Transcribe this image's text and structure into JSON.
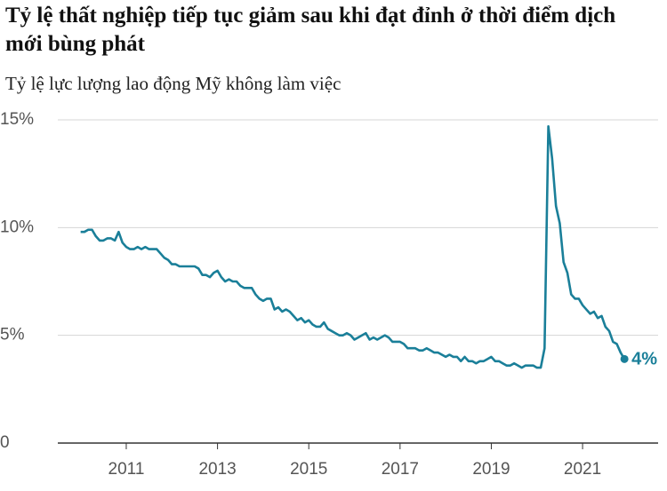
{
  "chart_data": {
    "type": "line",
    "title": "Tỷ lệ thất nghiệp tiếp tục giảm sau khi đạt đỉnh ở thời điểm dịch mới bùng phát",
    "subtitle": "Tỷ lệ lực lượng lao động Mỹ không làm việc",
    "x": [
      2010,
      2010.083,
      2010.167,
      2010.25,
      2010.333,
      2010.417,
      2010.5,
      2010.583,
      2010.667,
      2010.75,
      2010.833,
      2010.917,
      2011,
      2011.083,
      2011.167,
      2011.25,
      2011.333,
      2011.417,
      2011.5,
      2011.583,
      2011.667,
      2011.75,
      2011.833,
      2011.917,
      2012,
      2012.083,
      2012.167,
      2012.25,
      2012.333,
      2012.417,
      2012.5,
      2012.583,
      2012.667,
      2012.75,
      2012.833,
      2012.917,
      2013,
      2013.083,
      2013.167,
      2013.25,
      2013.333,
      2013.417,
      2013.5,
      2013.583,
      2013.667,
      2013.75,
      2013.833,
      2013.917,
      2014,
      2014.083,
      2014.167,
      2014.25,
      2014.333,
      2014.417,
      2014.5,
      2014.583,
      2014.667,
      2014.75,
      2014.833,
      2014.917,
      2015,
      2015.083,
      2015.167,
      2015.25,
      2015.333,
      2015.417,
      2015.5,
      2015.583,
      2015.667,
      2015.75,
      2015.833,
      2015.917,
      2016,
      2016.083,
      2016.167,
      2016.25,
      2016.333,
      2016.417,
      2016.5,
      2016.583,
      2016.667,
      2016.75,
      2016.833,
      2016.917,
      2017,
      2017.083,
      2017.167,
      2017.25,
      2017.333,
      2017.417,
      2017.5,
      2017.583,
      2017.667,
      2017.75,
      2017.833,
      2017.917,
      2018,
      2018.083,
      2018.167,
      2018.25,
      2018.333,
      2018.417,
      2018.5,
      2018.583,
      2018.667,
      2018.75,
      2018.833,
      2018.917,
      2019,
      2019.083,
      2019.167,
      2019.25,
      2019.333,
      2019.417,
      2019.5,
      2019.583,
      2019.667,
      2019.75,
      2019.833,
      2019.917,
      2020,
      2020.083,
      2020.167,
      2020.25,
      2020.333,
      2020.417,
      2020.5,
      2020.583,
      2020.667,
      2020.75,
      2020.833,
      2020.917,
      2021,
      2021.083,
      2021.167,
      2021.25,
      2021.333,
      2021.417,
      2021.5,
      2021.583,
      2021.667,
      2021.75,
      2021.833,
      2021.917
    ],
    "values": [
      9.8,
      9.8,
      9.9,
      9.9,
      9.6,
      9.4,
      9.4,
      9.5,
      9.5,
      9.4,
      9.8,
      9.3,
      9.1,
      9.0,
      9.0,
      9.1,
      9.0,
      9.1,
      9.0,
      9.0,
      9.0,
      8.8,
      8.6,
      8.5,
      8.3,
      8.3,
      8.2,
      8.2,
      8.2,
      8.2,
      8.2,
      8.1,
      7.8,
      7.8,
      7.7,
      7.9,
      8.0,
      7.7,
      7.5,
      7.6,
      7.5,
      7.5,
      7.3,
      7.2,
      7.2,
      7.2,
      6.9,
      6.7,
      6.6,
      6.7,
      6.7,
      6.2,
      6.3,
      6.1,
      6.2,
      6.1,
      5.9,
      5.7,
      5.8,
      5.6,
      5.7,
      5.5,
      5.4,
      5.4,
      5.6,
      5.3,
      5.2,
      5.1,
      5.0,
      5.0,
      5.1,
      5.0,
      4.8,
      4.9,
      5.0,
      5.1,
      4.8,
      4.9,
      4.8,
      4.9,
      5.0,
      4.9,
      4.7,
      4.7,
      4.7,
      4.6,
      4.4,
      4.4,
      4.4,
      4.3,
      4.3,
      4.4,
      4.3,
      4.2,
      4.2,
      4.1,
      4.0,
      4.1,
      4.0,
      4.0,
      3.8,
      4.0,
      3.8,
      3.8,
      3.7,
      3.8,
      3.8,
      3.9,
      4.0,
      3.8,
      3.8,
      3.7,
      3.6,
      3.6,
      3.7,
      3.6,
      3.5,
      3.6,
      3.6,
      3.6,
      3.5,
      3.5,
      4.4,
      14.7,
      13.2,
      11.0,
      10.2,
      8.4,
      7.9,
      6.9,
      6.7,
      6.7,
      6.4,
      6.2,
      6.0,
      6.1,
      5.8,
      5.9,
      5.4,
      5.2,
      4.7,
      4.6,
      4.2,
      3.9
    ],
    "value_labels": [
      null,
      null,
      null,
      null,
      null,
      null,
      null,
      null,
      null,
      null,
      null,
      null,
      null,
      null,
      null,
      null,
      null,
      null,
      null,
      null,
      null,
      null,
      null,
      null,
      null,
      null,
      null,
      null,
      null,
      null,
      null,
      null,
      null,
      null,
      null,
      null,
      null,
      null,
      null,
      null,
      null,
      null,
      null,
      null,
      null,
      null,
      null,
      null,
      null,
      null,
      null,
      null,
      null,
      null,
      null,
      null,
      null,
      null,
      null,
      null,
      null,
      null,
      null,
      null,
      null,
      null,
      null,
      null,
      null,
      null,
      null,
      null,
      null,
      null,
      null,
      null,
      null,
      null,
      null,
      null,
      null,
      null,
      null,
      null,
      null,
      null,
      null,
      null,
      null,
      null,
      null,
      null,
      null,
      null,
      null,
      null,
      null,
      null,
      null,
      null,
      null,
      null,
      null,
      null,
      null,
      null,
      null,
      null,
      null,
      null,
      null,
      null,
      null,
      null,
      null,
      null,
      null,
      null,
      null,
      null,
      null,
      null,
      null,
      null,
      null,
      null,
      null,
      null,
      null,
      null,
      null,
      null,
      null,
      null,
      null,
      null,
      null,
      null,
      null,
      null,
      null,
      null,
      null,
      "4%"
    ],
    "color": "#1a7f99",
    "xlim": [
      2009.5,
      2022.85
    ],
    "xticks": [
      2011,
      2013,
      2015,
      2017,
      2019,
      2021
    ],
    "ylim": [
      0,
      15
    ],
    "yticks": [
      0,
      {
        "value": 5,
        "label": "5%"
      },
      {
        "value": 10,
        "label": "10%"
      },
      {
        "value": 15,
        "label": "15%"
      }
    ],
    "grid": true
  }
}
